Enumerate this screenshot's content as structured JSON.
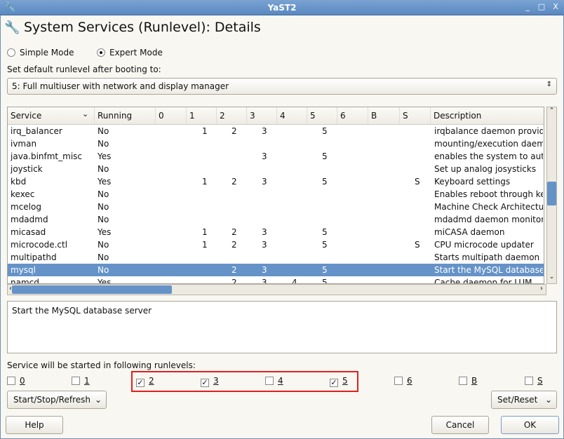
{
  "window": {
    "title": "YaST2"
  },
  "page_title": "System Services (Runlevel): Details",
  "modes": [
    {
      "label": "Simple Mode",
      "selected": false
    },
    {
      "label": "Expert Mode",
      "selected": true
    }
  ],
  "default_runlevel": {
    "label": "Set default runlevel after booting to:",
    "value": "5: Full multiuser with network and display manager"
  },
  "table": {
    "columns": [
      "Service",
      "Running",
      "0",
      "1",
      "2",
      "3",
      "4",
      "5",
      "6",
      "B",
      "S",
      "Description"
    ],
    "rows": [
      [
        "irq_balancer",
        "No",
        "",
        "1",
        "2",
        "3",
        "",
        "5",
        "",
        "",
        "",
        "irqbalance daemon providin"
      ],
      [
        "ivman",
        "No",
        "",
        "",
        "",
        "",
        "",
        "",
        "",
        "",
        "",
        "mounting/execution daemo"
      ],
      [
        "java.binfmt_misc",
        "Yes",
        "",
        "",
        "",
        "3",
        "",
        "5",
        "",
        "",
        "",
        "enables the system to auto"
      ],
      [
        "joystick",
        "No",
        "",
        "",
        "",
        "",
        "",
        "",
        "",
        "",
        "",
        "Set up analog josysticks"
      ],
      [
        "kbd",
        "Yes",
        "",
        "1",
        "2",
        "3",
        "",
        "5",
        "",
        "",
        "S",
        "Keyboard settings"
      ],
      [
        "kexec",
        "No",
        "",
        "",
        "",
        "",
        "",
        "",
        "",
        "",
        "",
        "Enables reboot through kex"
      ],
      [
        "mcelog",
        "No",
        "",
        "",
        "",
        "",
        "",
        "",
        "",
        "",
        "",
        "Machine Check Architectur"
      ],
      [
        "mdadmd",
        "No",
        "",
        "",
        "",
        "",
        "",
        "",
        "",
        "",
        "",
        "mdadmd daemon monitorin"
      ],
      [
        "micasad",
        "Yes",
        "",
        "1",
        "2",
        "3",
        "",
        "5",
        "",
        "",
        "",
        "miCASA daemon"
      ],
      [
        "microcode.ctl",
        "No",
        "",
        "1",
        "2",
        "3",
        "",
        "5",
        "",
        "",
        "S",
        "CPU microcode updater"
      ],
      [
        "multipathd",
        "No",
        "",
        "",
        "",
        "",
        "",
        "",
        "",
        "",
        "",
        "Starts multipath daemon"
      ],
      [
        "mysql",
        "No",
        "",
        "",
        "2",
        "3",
        "",
        "5",
        "",
        "",
        "",
        "Start the MySQL database"
      ],
      [
        "namcd",
        "Yes",
        "",
        "",
        "2",
        "3",
        "4",
        "5",
        "",
        "",
        "",
        "Cache daemon for LUM"
      ]
    ],
    "selected_row": 11
  },
  "description_text": "Start the MySQL database server",
  "runlevels": {
    "label": "Service will be started in following runlevels:",
    "items": [
      {
        "label": "0",
        "checked": false
      },
      {
        "label": "1",
        "checked": false
      },
      {
        "label": "2",
        "checked": true
      },
      {
        "label": "3",
        "checked": true
      },
      {
        "label": "4",
        "checked": false
      },
      {
        "label": "5",
        "checked": true
      },
      {
        "label": "6",
        "checked": false
      },
      {
        "label": "B",
        "checked": false
      },
      {
        "label": "S",
        "checked": false
      }
    ]
  },
  "buttons": {
    "start_stop": "Start/Stop/Refresh",
    "set_reset": "Set/Reset",
    "help": "Help",
    "cancel": "Cancel",
    "ok": "OK"
  },
  "colors": {
    "selection": "#6593c8",
    "highlight_box": "#e02020",
    "titlebar": "#6a96cc"
  }
}
